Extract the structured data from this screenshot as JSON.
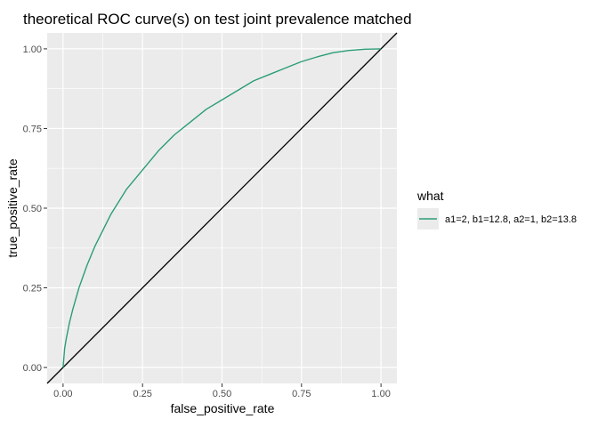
{
  "chart_data": {
    "type": "line",
    "title": "theoretical ROC curve(s) on test joint prevalence matched",
    "xlabel": "false_positive_rate",
    "ylabel": "true_positive_rate",
    "xlim": [
      -0.05,
      1.05
    ],
    "ylim": [
      -0.05,
      1.05
    ],
    "x_ticks": [
      "0.00",
      "0.25",
      "0.50",
      "0.75",
      "1.00"
    ],
    "y_ticks": [
      "0.00",
      "0.25",
      "0.50",
      "0.75",
      "1.00"
    ],
    "grid": true,
    "legend": {
      "title": "what",
      "placement": "right",
      "entries": [
        "a1=2, b1=12.8, a2=1, b2=13.8"
      ]
    },
    "series": [
      {
        "name": "a1=2, b1=12.8, a2=1, b2=13.8",
        "color": "#2a9d74",
        "x": [
          0.0,
          0.005,
          0.01,
          0.02,
          0.03,
          0.05,
          0.075,
          0.1,
          0.125,
          0.15,
          0.2,
          0.25,
          0.3,
          0.35,
          0.4,
          0.45,
          0.5,
          0.55,
          0.6,
          0.65,
          0.7,
          0.75,
          0.8,
          0.85,
          0.9,
          0.95,
          1.0
        ],
        "y": [
          0.0,
          0.06,
          0.09,
          0.14,
          0.18,
          0.25,
          0.32,
          0.38,
          0.43,
          0.48,
          0.56,
          0.62,
          0.68,
          0.73,
          0.77,
          0.81,
          0.84,
          0.87,
          0.9,
          0.92,
          0.94,
          0.96,
          0.975,
          0.988,
          0.995,
          0.999,
          1.0
        ]
      }
    ],
    "reference_line": {
      "slope": 1,
      "intercept": 0,
      "color": "#000000"
    }
  }
}
